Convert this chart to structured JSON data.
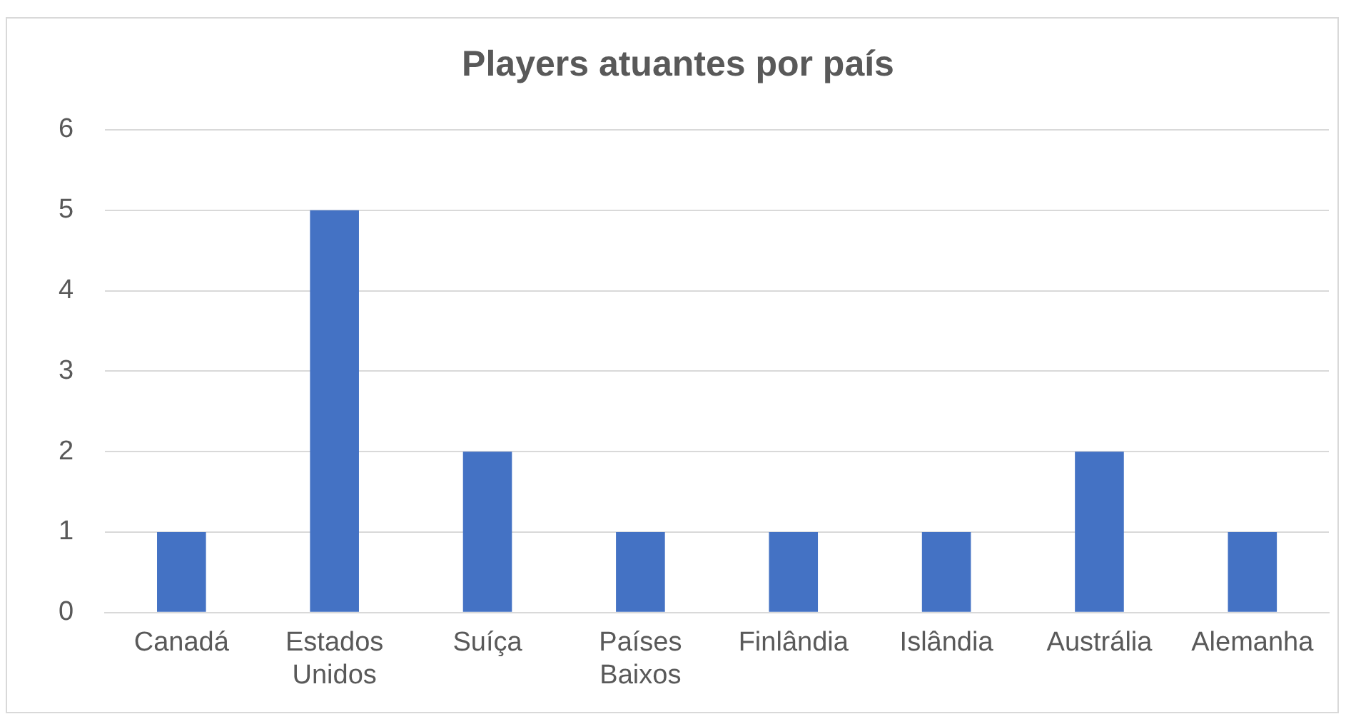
{
  "chart_data": {
    "type": "bar",
    "title": "Players atuantes por país",
    "categories": [
      "Canadá",
      "Estados Unidos",
      "Suíça",
      "Países Baixos",
      "Finlândia",
      "Islândia",
      "Austrália",
      "Alemanha"
    ],
    "values": [
      1,
      5,
      2,
      1,
      1,
      1,
      2,
      1
    ],
    "color": "#4472c4",
    "ylim": [
      0,
      6
    ],
    "yticks": [
      0,
      1,
      2,
      3,
      4,
      5,
      6
    ],
    "grid": "y",
    "legend": false
  }
}
